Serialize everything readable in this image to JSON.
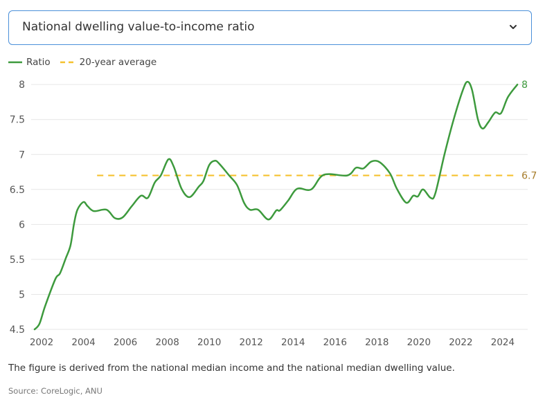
{
  "dropdown": {
    "selected": "National dwelling value-to-income ratio",
    "icon": "chevron-down-icon"
  },
  "note": "The figure is derived from the national median income and the national median dwelling value.",
  "source": "Source: CoreLogic, ANU",
  "chart_data": {
    "type": "line",
    "title": "",
    "xlabel": "",
    "ylabel": "",
    "xlim": [
      2001.6,
      2024.8
    ],
    "ylim": [
      4.5,
      8
    ],
    "grid": true,
    "legend_position": "top-left",
    "x_ticks": [
      "2002",
      "2004",
      "2006",
      "2008",
      "2010",
      "2012",
      "2014",
      "2016",
      "2018",
      "2020",
      "2022",
      "2024"
    ],
    "y_ticks": [
      "4.5",
      "5",
      "5.5",
      "6",
      "6.5",
      "7",
      "7.5",
      "8"
    ],
    "series": [
      {
        "name": "Ratio",
        "color": "#3d9a3d",
        "end_label": "8",
        "x": [
          2001.67,
          2001.9,
          2002.17,
          2002.66,
          2002.88,
          2003.16,
          2003.38,
          2003.55,
          2003.71,
          2004.0,
          2004.2,
          2004.5,
          2005.1,
          2005.5,
          2005.87,
          2006.3,
          2006.74,
          2007.07,
          2007.4,
          2007.69,
          2008.05,
          2008.3,
          2008.68,
          2009.06,
          2009.5,
          2009.72,
          2010.0,
          2010.28,
          2010.5,
          2010.95,
          2011.33,
          2011.66,
          2011.94,
          2012.33,
          2012.82,
          2013.2,
          2013.37,
          2013.76,
          2014.2,
          2014.86,
          2015.47,
          2016.58,
          2017.0,
          2017.35,
          2017.74,
          2018.13,
          2018.62,
          2018.95,
          2019.4,
          2019.73,
          2019.95,
          2020.2,
          2020.56,
          2020.78,
          2021.22,
          2021.66,
          2022.1,
          2022.32,
          2022.54,
          2022.82,
          2023.04,
          2023.31,
          2023.64,
          2023.92,
          2024.25,
          2024.7
        ],
        "y": [
          4.5,
          4.58,
          4.83,
          5.22,
          5.3,
          5.52,
          5.7,
          6.01,
          6.21,
          6.32,
          6.26,
          6.19,
          6.21,
          6.09,
          6.1,
          6.26,
          6.41,
          6.38,
          6.6,
          6.7,
          6.93,
          6.83,
          6.51,
          6.39,
          6.54,
          6.62,
          6.85,
          6.91,
          6.86,
          6.7,
          6.56,
          6.31,
          6.21,
          6.21,
          6.07,
          6.2,
          6.2,
          6.34,
          6.51,
          6.5,
          6.71,
          6.7,
          6.81,
          6.8,
          6.9,
          6.89,
          6.73,
          6.51,
          6.31,
          6.41,
          6.4,
          6.5,
          6.38,
          6.44,
          7.0,
          7.5,
          7.92,
          8.04,
          7.92,
          7.5,
          7.37,
          7.46,
          7.6,
          7.59,
          7.82,
          8.0
        ]
      },
      {
        "name": "20-year average",
        "color": "#f5c12e",
        "label_color": "#a67c2a",
        "dashed": true,
        "end_label": "6.7",
        "x": [
          2004.65,
          2024.7
        ],
        "y": [
          6.7,
          6.7
        ]
      }
    ]
  }
}
